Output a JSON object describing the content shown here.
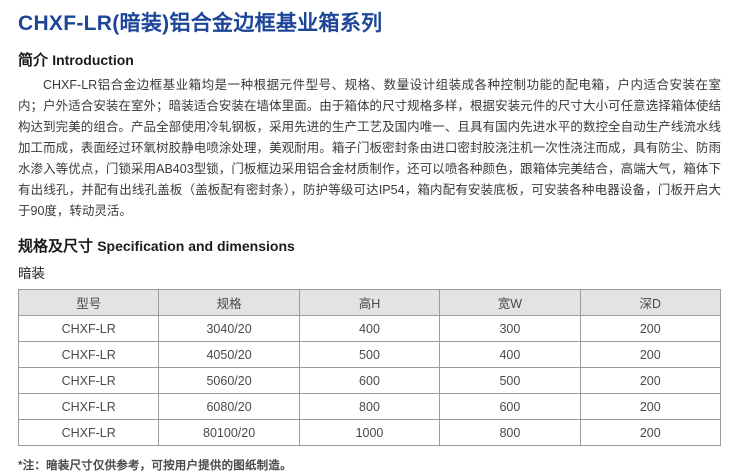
{
  "title": "CHXF-LR(暗装)铝合金边框基业箱系列",
  "intro": {
    "heading_zh": "简介",
    "heading_en": "Introduction",
    "body": "CHXF-LR铝合金边框基业箱均是一种根据元件型号、规格、数量设计组装成各种控制功能的配电箱，户内适合安装在室内；户外适合安装在室外；暗装适合安装在墙体里面。由于箱体的尺寸规格多样，根据安装元件的尺寸大小可任意选择箱体使结构达到完美的组合。产品全部使用冷轧钢板，采用先进的生产工艺及国内唯一、且具有国内先进水平的数控全自动生产线流水线加工而成，表面经过环氧树胶静电喷涂处理，美观耐用。箱子门板密封条由进口密封胶浇注机一次性浇注而成，具有防尘、防雨水渗入等优点，门锁采用AB403型锁，门板框边采用铝合金材质制作，还可以喷各种颜色，跟箱体完美结合，高端大气，箱体下有出线孔，并配有出线孔盖板（盖板配有密封条），防护等级可达IP54，箱内配有安装底板，可安装各种电器设备，门板开启大于90度，转动灵活。"
  },
  "spec": {
    "heading_zh": "规格及尺寸",
    "heading_en": "Specification and dimensions",
    "subheading": "暗装",
    "table": {
      "columns": [
        "型号",
        "规格",
        "高H",
        "宽W",
        "深D"
      ],
      "rows": [
        [
          "CHXF-LR",
          "3040/20",
          "400",
          "300",
          "200"
        ],
        [
          "CHXF-LR",
          "4050/20",
          "500",
          "400",
          "200"
        ],
        [
          "CHXF-LR",
          "5060/20",
          "600",
          "500",
          "200"
        ],
        [
          "CHXF-LR",
          "6080/20",
          "800",
          "600",
          "200"
        ],
        [
          "CHXF-LR",
          "80100/20",
          "1000",
          "800",
          "200"
        ]
      ]
    },
    "note": "*注：暗装尺寸仅供参考，可按用户提供的图纸制造。"
  },
  "colors": {
    "title_blue": "#1d4699",
    "table_header_bg": "#e3e3e3",
    "table_border": "#9c9c9c",
    "body_text": "#3a3a3a"
  }
}
